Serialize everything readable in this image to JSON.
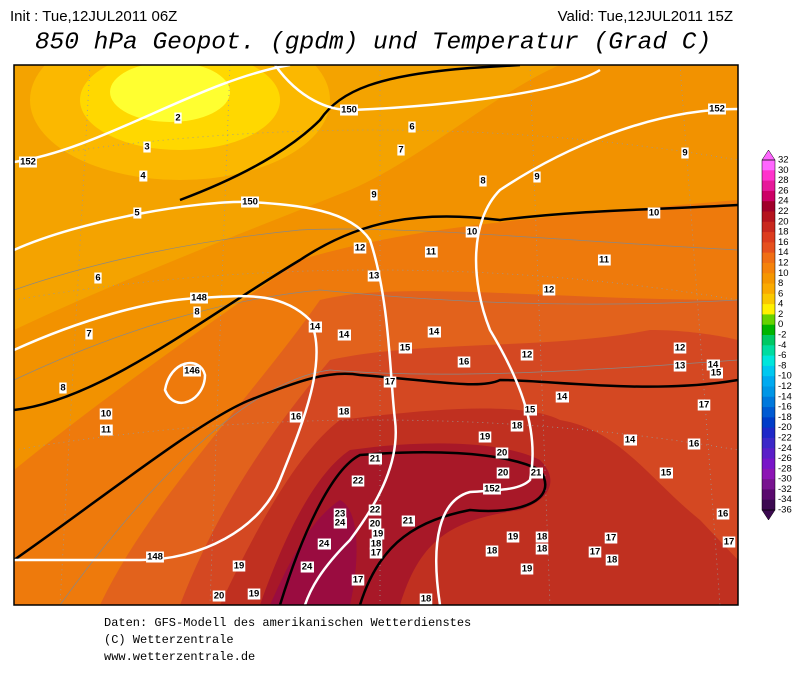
{
  "header": {
    "init": "Init : Tue,12JUL2011 06Z",
    "valid": "Valid: Tue,12JUL2011 15Z",
    "title": "850 hPa Geopot. (gpdm) und Temperatur (Grad C)"
  },
  "map": {
    "temperature_labels": [
      2,
      3,
      4,
      5,
      6,
      7,
      8,
      10,
      11,
      8,
      6,
      7,
      9,
      8,
      9,
      9,
      10,
      10,
      12,
      11,
      11,
      13,
      12,
      14,
      14,
      14,
      15,
      16,
      12,
      12,
      13,
      14,
      15,
      17,
      14,
      17,
      16,
      18,
      15,
      18,
      19,
      14,
      16,
      21,
      20,
      22,
      20,
      21,
      15,
      23,
      24,
      22,
      20,
      21,
      19,
      18,
      17,
      24,
      19,
      18,
      17,
      18,
      17,
      18,
      16,
      17,
      18,
      19,
      24,
      17,
      19,
      20,
      19,
      18
    ],
    "geopotential_labels": [
      150,
      152,
      152,
      150,
      148,
      146,
      152,
      148
    ]
  },
  "colorbar": {
    "labels": [
      32,
      30,
      28,
      26,
      24,
      22,
      20,
      18,
      16,
      14,
      12,
      10,
      8,
      6,
      4,
      2,
      0,
      -2,
      -4,
      -6,
      -8,
      -10,
      -12,
      -14,
      -16,
      -18,
      -20,
      -22,
      -24,
      -26,
      -28,
      -30,
      -32,
      -34,
      -36
    ],
    "colors": [
      "#ff66ff",
      "#ff33cc",
      "#e6199a",
      "#cc0066",
      "#a0002a",
      "#b4141e",
      "#c8281e",
      "#dc3c1e",
      "#e6501e",
      "#f06e14",
      "#f5820a",
      "#f59600",
      "#faaa00",
      "#fac800",
      "#fff000",
      "#66d200",
      "#00b400",
      "#00c864",
      "#00dca0",
      "#00e6dc",
      "#00c8f0",
      "#00aaf0",
      "#0096e6",
      "#0078dc",
      "#005ad2",
      "#003cc8",
      "#1e28c8",
      "#3c28c8",
      "#5a1ec8",
      "#7814c8",
      "#8c14b4",
      "#781490",
      "#5a0a6e",
      "#3c0a50"
    ]
  },
  "footer": {
    "lines": [
      "Daten: GFS-Modell des amerikanischen Wetterdienstes",
      "(C) Wetterzentrale",
      "www.wetterzentrale.de"
    ]
  }
}
